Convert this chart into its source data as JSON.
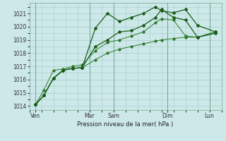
{
  "background_color": "#cce8e8",
  "grid_color": "#aacccc",
  "line_color_dark": "#1a5c1a",
  "line_color_mid": "#2d7a2d",
  "xlabel": "Pression niveau de la mer( hPa )",
  "ylim": [
    1013.7,
    1021.8
  ],
  "yticks": [
    1014,
    1015,
    1016,
    1017,
    1018,
    1019,
    1020,
    1021
  ],
  "xlim": [
    0,
    16
  ],
  "day_labels": [
    "Ven",
    "Mar",
    "Sam",
    "Dim",
    "Lun"
  ],
  "day_positions": [
    0.5,
    5.0,
    7.0,
    11.5,
    15.0
  ],
  "vline_positions": [
    0.5,
    5.0,
    7.0,
    11.5,
    15.0
  ],
  "series1_x": [
    0.5,
    1.2,
    2.0,
    2.8,
    3.6,
    4.4,
    5.5,
    6.5,
    7.5,
    8.5,
    9.5,
    10.5,
    11.0,
    12.0,
    13.0,
    14.0,
    15.5
  ],
  "series1_y": [
    1014.1,
    1014.8,
    1016.1,
    1016.7,
    1016.85,
    1016.9,
    1019.9,
    1021.0,
    1020.4,
    1020.7,
    1021.0,
    1021.5,
    1021.2,
    1021.05,
    1021.3,
    1020.1,
    1019.6
  ],
  "series2_x": [
    0.5,
    1.2,
    2.0,
    2.8,
    3.6,
    4.4,
    5.5,
    6.5,
    7.5,
    8.5,
    9.5,
    10.5,
    11.0,
    12.0,
    13.0,
    14.0,
    15.5
  ],
  "series2_y": [
    1014.1,
    1014.8,
    1016.1,
    1016.7,
    1016.85,
    1016.9,
    1018.5,
    1019.0,
    1019.6,
    1019.7,
    1020.1,
    1020.7,
    1021.3,
    1020.7,
    1020.5,
    1019.2,
    1019.5
  ],
  "series3_x": [
    0.5,
    1.2,
    2.0,
    2.8,
    3.6,
    4.4,
    5.5,
    6.5,
    7.5,
    8.5,
    9.5,
    10.5,
    11.0,
    12.0,
    13.0,
    14.0,
    15.5
  ],
  "series3_y": [
    1014.1,
    1014.8,
    1016.1,
    1016.7,
    1016.85,
    1016.9,
    1017.5,
    1018.0,
    1018.3,
    1018.5,
    1018.7,
    1018.9,
    1019.0,
    1019.1,
    1019.2,
    1019.2,
    1019.6
  ],
  "series4_x": [
    0.5,
    1.2,
    2.0,
    2.8,
    3.6,
    4.4,
    5.5,
    6.5,
    7.5,
    8.5,
    9.5,
    10.5,
    11.0,
    12.0,
    13.0,
    14.0,
    15.5
  ],
  "series4_y": [
    1014.1,
    1015.2,
    1016.7,
    1016.8,
    1017.0,
    1017.1,
    1018.2,
    1018.8,
    1019.0,
    1019.3,
    1019.6,
    1020.3,
    1020.6,
    1020.5,
    1019.3,
    1019.2,
    1019.6
  ]
}
